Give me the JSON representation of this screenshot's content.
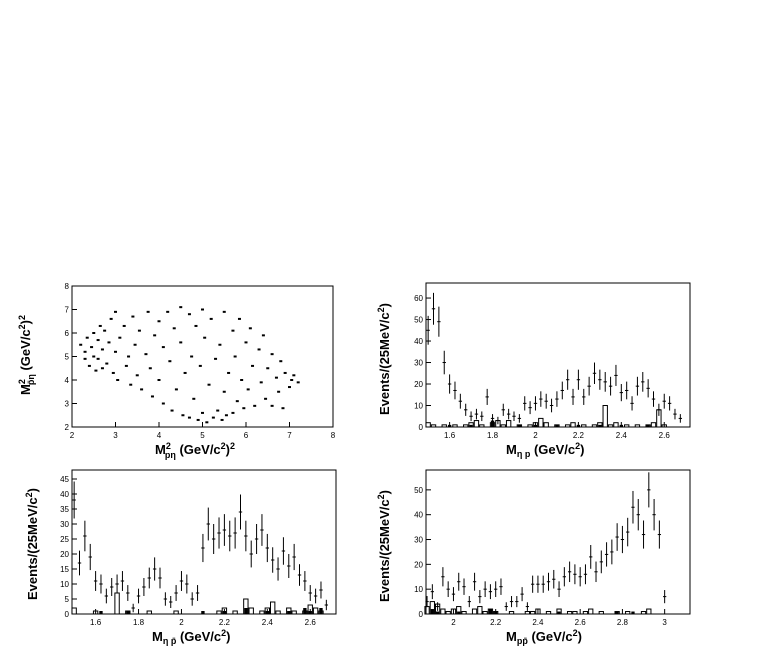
{
  "chart_data": [
    {
      "type": "scatter",
      "xlabel": "M² pη (GeV/c²)²",
      "ylabel": "M² p̄η (GeV/c²)²",
      "xlim": [
        2,
        8
      ],
      "ylim": [
        2,
        8
      ],
      "xticks": [
        "2",
        "3",
        "4",
        "5",
        "6",
        "7",
        "8"
      ],
      "yticks": [
        "2",
        "3",
        "4",
        "5",
        "6",
        "7",
        "8"
      ],
      "grid": false,
      "points": [
        [
          2.2,
          5.5
        ],
        [
          2.3,
          4.9
        ],
        [
          2.3,
          5.2
        ],
        [
          2.35,
          5.8
        ],
        [
          2.4,
          4.6
        ],
        [
          2.45,
          5.4
        ],
        [
          2.5,
          6.0
        ],
        [
          2.5,
          5.0
        ],
        [
          2.55,
          4.4
        ],
        [
          2.6,
          5.7
        ],
        [
          2.6,
          4.9
        ],
        [
          2.65,
          6.3
        ],
        [
          2.7,
          4.5
        ],
        [
          2.7,
          5.3
        ],
        [
          2.75,
          6.1
        ],
        [
          2.8,
          4.7
        ],
        [
          2.85,
          5.6
        ],
        [
          2.9,
          6.6
        ],
        [
          2.95,
          4.3
        ],
        [
          3.0,
          5.2
        ],
        [
          3.0,
          6.9
        ],
        [
          3.05,
          4.0
        ],
        [
          3.1,
          5.8
        ],
        [
          3.2,
          6.3
        ],
        [
          3.25,
          4.6
        ],
        [
          3.3,
          5.0
        ],
        [
          3.35,
          3.8
        ],
        [
          3.4,
          6.7
        ],
        [
          3.45,
          5.5
        ],
        [
          3.5,
          4.2
        ],
        [
          3.55,
          6.1
        ],
        [
          3.6,
          3.6
        ],
        [
          3.7,
          5.1
        ],
        [
          3.75,
          6.9
        ],
        [
          3.8,
          4.5
        ],
        [
          3.85,
          3.3
        ],
        [
          3.9,
          5.9
        ],
        [
          4.0,
          6.5
        ],
        [
          4.0,
          4.0
        ],
        [
          4.1,
          3.0
        ],
        [
          4.1,
          5.4
        ],
        [
          4.2,
          6.9
        ],
        [
          4.25,
          4.8
        ],
        [
          4.3,
          2.7
        ],
        [
          4.35,
          6.2
        ],
        [
          4.4,
          3.6
        ],
        [
          4.5,
          7.1
        ],
        [
          4.5,
          5.6
        ],
        [
          4.55,
          2.5
        ],
        [
          4.6,
          4.3
        ],
        [
          4.7,
          6.8
        ],
        [
          4.7,
          2.4
        ],
        [
          4.75,
          5.0
        ],
        [
          4.8,
          3.2
        ],
        [
          4.85,
          6.3
        ],
        [
          4.9,
          2.3
        ],
        [
          4.95,
          4.6
        ],
        [
          5.0,
          7.0
        ],
        [
          5.0,
          2.6
        ],
        [
          5.05,
          5.8
        ],
        [
          5.1,
          2.2
        ],
        [
          5.15,
          3.8
        ],
        [
          5.2,
          6.6
        ],
        [
          5.25,
          2.4
        ],
        [
          5.3,
          4.9
        ],
        [
          5.35,
          2.7
        ],
        [
          5.4,
          5.5
        ],
        [
          5.45,
          2.3
        ],
        [
          5.5,
          6.9
        ],
        [
          5.5,
          3.5
        ],
        [
          5.55,
          2.5
        ],
        [
          5.6,
          4.3
        ],
        [
          5.7,
          6.1
        ],
        [
          5.7,
          2.6
        ],
        [
          5.75,
          5.0
        ],
        [
          5.8,
          3.1
        ],
        [
          5.85,
          6.6
        ],
        [
          5.9,
          4.0
        ],
        [
          5.95,
          2.8
        ],
        [
          6.0,
          5.6
        ],
        [
          6.05,
          3.6
        ],
        [
          6.1,
          6.2
        ],
        [
          6.15,
          4.6
        ],
        [
          6.2,
          2.9
        ],
        [
          6.3,
          5.3
        ],
        [
          6.35,
          3.9
        ],
        [
          6.4,
          5.9
        ],
        [
          6.45,
          3.2
        ],
        [
          6.5,
          4.5
        ],
        [
          6.6,
          5.1
        ],
        [
          6.6,
          2.9
        ],
        [
          6.7,
          4.1
        ],
        [
          6.75,
          3.5
        ],
        [
          6.8,
          4.8
        ],
        [
          6.85,
          2.8
        ],
        [
          6.9,
          4.3
        ],
        [
          7.0,
          3.7
        ],
        [
          7.05,
          4.0
        ],
        [
          7.1,
          4.2
        ],
        [
          7.2,
          3.9
        ]
      ]
    },
    {
      "type": "bar",
      "xlabel": "Mη p (GeV/c²)",
      "ylabel": "Events/(25MeV/c²)",
      "xlim": [
        1.49,
        2.72
      ],
      "ylim": [
        0,
        67
      ],
      "xticks": [
        "1.6",
        "1.8",
        "2",
        "2.2",
        "2.4",
        "2.6"
      ],
      "yticks": [
        "0",
        "10",
        "20",
        "30",
        "40",
        "50",
        "60"
      ],
      "bin_width": 0.025,
      "x": [
        1.5,
        1.525,
        1.55,
        1.575,
        1.6,
        1.625,
        1.65,
        1.675,
        1.7,
        1.725,
        1.75,
        1.775,
        1.8,
        1.825,
        1.85,
        1.875,
        1.9,
        1.925,
        1.95,
        1.975,
        2.0,
        2.025,
        2.05,
        2.075,
        2.1,
        2.125,
        2.15,
        2.175,
        2.2,
        2.225,
        2.25,
        2.275,
        2.3,
        2.325,
        2.35,
        2.375,
        2.4,
        2.425,
        2.45,
        2.475,
        2.5,
        2.525,
        2.55,
        2.575,
        2.6,
        2.625,
        2.65,
        2.675
      ],
      "data": [
        45,
        55,
        49,
        30,
        20,
        17,
        12,
        8,
        5,
        6,
        5,
        14,
        4,
        3,
        8,
        6,
        5,
        4,
        11,
        9,
        11,
        13,
        12,
        10,
        13,
        17,
        22,
        14,
        22,
        14,
        19,
        25,
        22,
        21,
        19,
        24,
        16,
        17,
        11,
        19,
        21,
        18,
        13,
        8,
        12,
        11,
        6,
        4
      ],
      "bkg_open": [
        2,
        1,
        0,
        1,
        0,
        1,
        0,
        1,
        2,
        3,
        1,
        0,
        2,
        3,
        1,
        3,
        0,
        1,
        0,
        1,
        2,
        4,
        2,
        0,
        1,
        0,
        1,
        2,
        0,
        1,
        0,
        1,
        2,
        10,
        1,
        2,
        0,
        1,
        0,
        1,
        0,
        1,
        2,
        8,
        1,
        0,
        0,
        0
      ],
      "bkg_filled": [
        0,
        0,
        0,
        0,
        1,
        0,
        0,
        0,
        1,
        0,
        0,
        0,
        3,
        0,
        0,
        0,
        0,
        1,
        0,
        0,
        1,
        0,
        0,
        0,
        1,
        0,
        0,
        0,
        1,
        0,
        0,
        0,
        1,
        0,
        0,
        0,
        1,
        0,
        0,
        0,
        0,
        1,
        0,
        0,
        0,
        0,
        0,
        0
      ]
    },
    {
      "type": "bar",
      "xlabel": "Mη p̄ (GeV/c²)",
      "ylabel": "Events/(25MeV/c²)",
      "xlim": [
        1.49,
        2.72
      ],
      "ylim": [
        0,
        48
      ],
      "xticks": [
        "1.6",
        "1.8",
        "2",
        "2.2",
        "2.4",
        "2.6"
      ],
      "yticks": [
        "0",
        "5",
        "10",
        "15",
        "20",
        "25",
        "30",
        "35",
        "40",
        "45"
      ],
      "bin_width": 0.025,
      "x": [
        1.5,
        1.525,
        1.55,
        1.575,
        1.6,
        1.625,
        1.65,
        1.675,
        1.7,
        1.725,
        1.75,
        1.775,
        1.8,
        1.825,
        1.85,
        1.875,
        1.9,
        1.925,
        1.95,
        1.975,
        2.0,
        2.025,
        2.05,
        2.075,
        2.1,
        2.125,
        2.15,
        2.175,
        2.2,
        2.225,
        2.25,
        2.275,
        2.3,
        2.325,
        2.35,
        2.375,
        2.4,
        2.425,
        2.45,
        2.475,
        2.5,
        2.525,
        2.55,
        2.575,
        2.6,
        2.625,
        2.65,
        2.675
      ],
      "data": [
        38,
        17,
        26,
        19,
        11,
        10,
        6,
        9,
        10,
        11,
        7,
        2,
        6,
        9,
        12,
        15,
        12,
        5,
        4,
        7,
        11,
        10,
        5,
        7,
        22,
        30,
        25,
        27,
        28,
        26,
        27,
        34,
        26,
        20,
        25,
        28,
        22,
        18,
        15,
        21,
        16,
        19,
        13,
        11,
        7,
        6,
        8,
        3
      ],
      "bkg_open": [
        2,
        0,
        0,
        0,
        1,
        0,
        0,
        0,
        7,
        0,
        1,
        0,
        0,
        0,
        1,
        0,
        0,
        0,
        0,
        1,
        0,
        0,
        0,
        0,
        0,
        0,
        0,
        1,
        2,
        0,
        1,
        0,
        5,
        2,
        0,
        1,
        2,
        4,
        1,
        0,
        2,
        1,
        0,
        1,
        3,
        2,
        1,
        0
      ],
      "bkg_filled": [
        0,
        0,
        0,
        0,
        0,
        1,
        0,
        0,
        0,
        0,
        1,
        0,
        0,
        0,
        0,
        0,
        0,
        0,
        0,
        0,
        0,
        0,
        0,
        0,
        1,
        0,
        0,
        0,
        1,
        0,
        0,
        0,
        2,
        0,
        0,
        0,
        1,
        0,
        0,
        0,
        1,
        0,
        0,
        2,
        1,
        0,
        2,
        0
      ]
    },
    {
      "type": "bar",
      "xlabel": "Mpp̄ (GeV/c²)",
      "ylabel": "Events/(25MeV/c²)",
      "xlim": [
        1.87,
        3.12
      ],
      "ylim": [
        0,
        58
      ],
      "xticks": [
        "2",
        "2.2",
        "2.4",
        "2.6",
        "2.8",
        "3"
      ],
      "yticks": [
        "0",
        "10",
        "20",
        "30",
        "40",
        "50"
      ],
      "bin_width": 0.025,
      "x": [
        1.875,
        1.9,
        1.925,
        1.95,
        1.975,
        2.0,
        2.025,
        2.05,
        2.075,
        2.1,
        2.125,
        2.15,
        2.175,
        2.2,
        2.225,
        2.25,
        2.275,
        2.3,
        2.325,
        2.35,
        2.375,
        2.4,
        2.425,
        2.45,
        2.475,
        2.5,
        2.525,
        2.55,
        2.575,
        2.6,
        2.625,
        2.65,
        2.675,
        2.7,
        2.725,
        2.75,
        2.775,
        2.8,
        2.825,
        2.85,
        2.875,
        2.9,
        2.925,
        2.95,
        2.975,
        3.0
      ],
      "data": [
        5,
        9,
        3,
        15,
        10,
        8,
        13,
        11,
        5,
        13,
        7,
        10,
        9,
        10,
        11,
        3,
        5,
        5,
        8,
        3,
        12,
        12,
        12,
        13,
        14,
        10,
        15,
        17,
        16,
        15,
        16,
        23,
        17,
        21,
        24,
        25,
        31,
        30,
        33,
        43,
        40,
        32,
        50,
        40,
        32,
        7
      ],
      "bkg_open": [
        3,
        5,
        4,
        2,
        1,
        2,
        3,
        1,
        0,
        2,
        3,
        1,
        2,
        1,
        0,
        0,
        1,
        0,
        0,
        1,
        1,
        2,
        0,
        1,
        0,
        2,
        0,
        1,
        1,
        0,
        1,
        2,
        0,
        1,
        0,
        0,
        1,
        0,
        1,
        0,
        0,
        1,
        2,
        0,
        0,
        0
      ],
      "bkg_filled": [
        0,
        2,
        1,
        0,
        0,
        0,
        1,
        0,
        0,
        0,
        0,
        0,
        2,
        1,
        0,
        0,
        0,
        0,
        0,
        0,
        0,
        0,
        0,
        0,
        0,
        1,
        0,
        0,
        0,
        0,
        0,
        0,
        0,
        0,
        0,
        0,
        1,
        0,
        0,
        1,
        0,
        0,
        0,
        0,
        0,
        0
      ]
    }
  ]
}
